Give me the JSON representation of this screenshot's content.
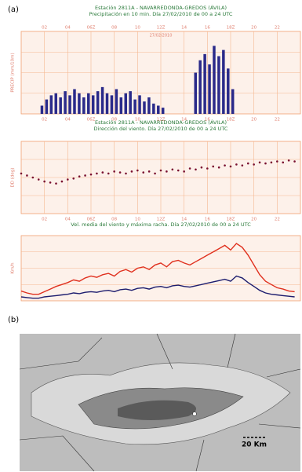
{
  "panel_labels": [
    "(a)",
    "(b)"
  ],
  "chart_data": [
    {
      "type": "bar",
      "title": "Estación 2811A - NAVARREDONDA-GREDOS (ÁVILA)",
      "subtitle": "Precipitación en 10 min. Día 27/02/2010 de 00 a 24 UTC",
      "annotation": "27/02/2010",
      "y_label": "PRECIP (mm/10m)",
      "color": "#2a2a8a",
      "xlim": [
        0,
        24
      ],
      "xticks": [
        {
          "value": 2,
          "label": "02"
        },
        {
          "value": 4,
          "label": "04"
        },
        {
          "value": 6,
          "label": "06Z"
        },
        {
          "value": 8,
          "label": "08"
        },
        10,
        {
          "value": 12,
          "label": "12Z"
        },
        14,
        16,
        {
          "value": 18,
          "label": "18Z"
        },
        20,
        22
      ],
      "ylim": [
        0,
        4
      ],
      "x": [
        1.8,
        2.2,
        2.6,
        3.0,
        3.4,
        3.8,
        4.2,
        4.6,
        5.0,
        5.4,
        5.8,
        6.2,
        6.6,
        7.0,
        7.4,
        7.8,
        8.2,
        8.6,
        9.0,
        9.4,
        9.8,
        10.2,
        10.6,
        11.0,
        11.4,
        11.8,
        12.2,
        15.0,
        15.4,
        15.8,
        16.2,
        16.6,
        17.0,
        17.4,
        17.8,
        18.2
      ],
      "values": [
        0.4,
        0.7,
        0.9,
        1.0,
        0.8,
        1.1,
        0.9,
        1.2,
        1.0,
        0.8,
        1.0,
        0.9,
        1.1,
        1.3,
        1.0,
        0.9,
        1.2,
        0.8,
        1.0,
        1.1,
        0.7,
        0.9,
        0.6,
        0.8,
        0.5,
        0.4,
        0.3,
        2.0,
        2.6,
        2.9,
        2.4,
        3.3,
        2.8,
        3.1,
        2.2,
        1.2
      ]
    },
    {
      "type": "scatter",
      "title": "Estación 2811A - NAVARREDONDA-GREDOS (ÁVILA)",
      "subtitle": "Dirección del viento. Día 27/02/2010 de 00 a 24 UTC",
      "y_label": "DD (deg)",
      "color": "#7a1030",
      "xlim": [
        0,
        24
      ],
      "xticks": [
        {
          "value": 2,
          "label": "02"
        },
        {
          "value": 4,
          "label": "04"
        },
        {
          "value": 6,
          "label": "06Z"
        },
        {
          "value": 8,
          "label": "08"
        },
        10,
        {
          "value": 12,
          "label": "12Z"
        },
        14,
        16,
        {
          "value": 18,
          "label": "18Z"
        },
        20,
        22
      ],
      "ylim": [
        0,
        360
      ],
      "x": [
        0,
        0.5,
        1,
        1.5,
        2,
        2.5,
        3,
        3.5,
        4,
        4.5,
        5,
        5.5,
        6,
        6.5,
        7,
        7.5,
        8,
        8.5,
        9,
        9.5,
        10,
        10.5,
        11,
        11.5,
        12,
        12.5,
        13,
        13.5,
        14,
        14.5,
        15,
        15.5,
        16,
        16.5,
        17,
        17.5,
        18,
        18.5,
        19,
        19.5,
        20,
        20.5,
        21,
        21.5,
        22,
        22.5,
        23,
        23.5
      ],
      "values": [
        200,
        190,
        180,
        170,
        160,
        155,
        150,
        160,
        170,
        175,
        185,
        190,
        195,
        200,
        205,
        200,
        210,
        205,
        200,
        210,
        215,
        205,
        210,
        200,
        215,
        210,
        220,
        215,
        210,
        225,
        220,
        230,
        225,
        235,
        230,
        240,
        235,
        245,
        240,
        250,
        245,
        255,
        250,
        255,
        260,
        255,
        265,
        260
      ]
    },
    {
      "type": "line",
      "title": "Vel. media del viento y máxima racha. Día 27/02/2010 de 00 a 24 UTC",
      "y_label": "Km/h",
      "xlim": [
        0,
        24
      ],
      "ylim": [
        0,
        100
      ],
      "x": [
        0,
        0.5,
        1,
        1.5,
        2,
        2.5,
        3,
        3.5,
        4,
        4.5,
        5,
        5.5,
        6,
        6.5,
        7,
        7.5,
        8,
        8.5,
        9,
        9.5,
        10,
        10.5,
        11,
        11.5,
        12,
        12.5,
        13,
        13.5,
        14,
        14.5,
        15,
        15.5,
        16,
        16.5,
        17,
        17.5,
        18,
        18.5,
        19,
        19.5,
        20,
        20.5,
        21,
        21.5,
        22,
        22.5,
        23,
        23.5
      ],
      "series": [
        {
          "color": "#e0301e",
          "values": [
            15,
            12,
            10,
            10,
            14,
            18,
            22,
            25,
            28,
            32,
            30,
            35,
            38,
            36,
            40,
            42,
            38,
            45,
            48,
            44,
            50,
            52,
            48,
            55,
            58,
            52,
            60,
            62,
            58,
            55,
            60,
            65,
            70,
            75,
            80,
            85,
            78,
            88,
            82,
            70,
            55,
            40,
            30,
            25,
            20,
            18,
            15,
            14
          ]
        },
        {
          "color": "#1c1c6e",
          "values": [
            6,
            5,
            4,
            4,
            6,
            7,
            8,
            9,
            10,
            12,
            11,
            13,
            14,
            13,
            15,
            16,
            14,
            17,
            18,
            16,
            19,
            20,
            18,
            21,
            22,
            20,
            23,
            24,
            22,
            21,
            23,
            25,
            27,
            29,
            31,
            33,
            30,
            38,
            35,
            28,
            22,
            16,
            12,
            10,
            9,
            8,
            7,
            6
          ]
        }
      ]
    }
  ],
  "map": {
    "scale_label": "20 Km"
  }
}
